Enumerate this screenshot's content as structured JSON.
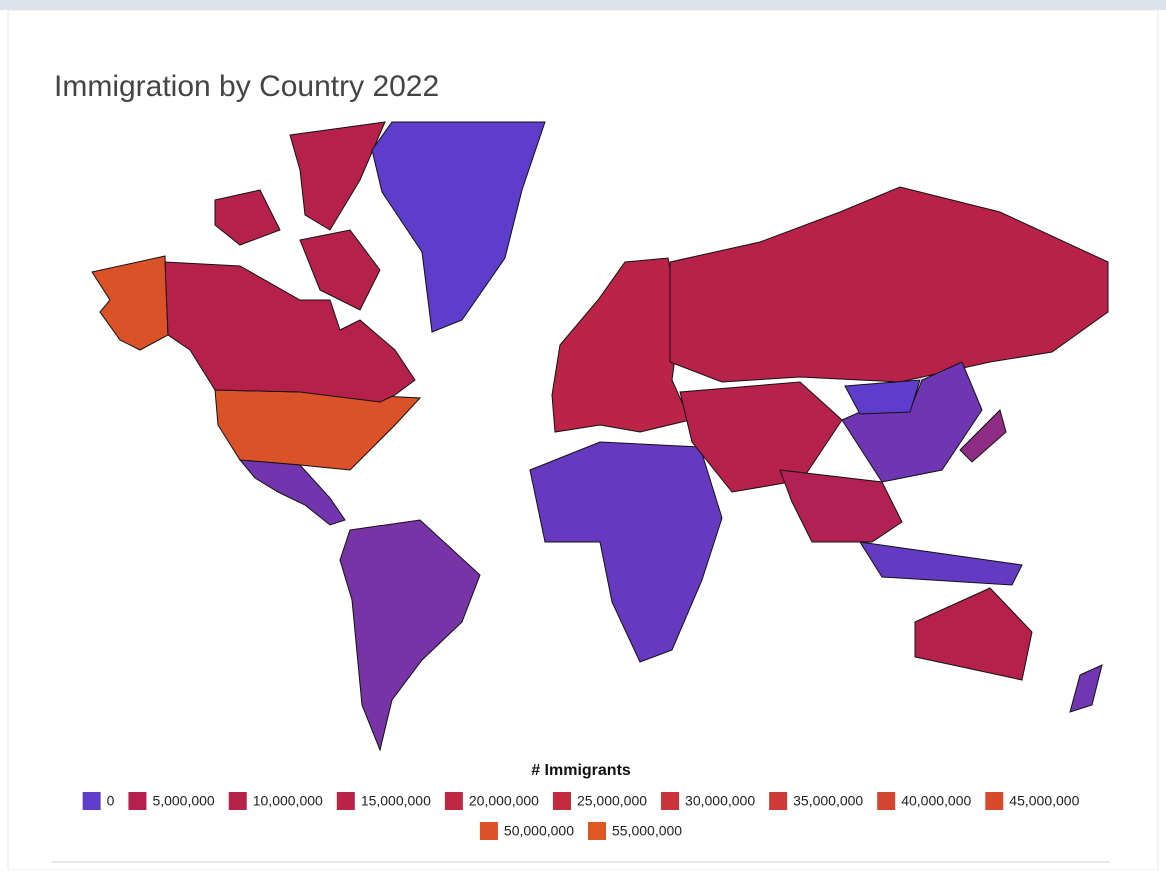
{
  "chart_data": {
    "type": "choropleth",
    "title": "Immigration by Country 2022",
    "values": [
      50600000,
      8000000,
      0,
      1200000,
      1500000,
      15000000,
      500000,
      11600000,
      9000000,
      1000000,
      0,
      4800000,
      350000,
      7700000,
      1100000,
      2800000
    ],
    "legend_title": "# Immigrants",
    "legend_ticks": [
      0,
      {
        "value": 5000000,
        "label": "5,000,000"
      },
      {
        "value": 10000000,
        "label": "10,000,000"
      },
      {
        "value": 15000000,
        "label": "15,000,000"
      },
      {
        "value": 20000000,
        "label": "20,000,000"
      },
      {
        "value": 25000000,
        "label": "25,000,000"
      },
      {
        "value": 30000000,
        "label": "30,000,000"
      },
      {
        "value": 35000000,
        "label": "35,000,000"
      },
      {
        "value": 40000000,
        "label": "40,000,000"
      },
      {
        "value": 45000000,
        "label": "45,000,000"
      },
      {
        "value": 50000000,
        "label": "50,000,000"
      },
      {
        "value": 55000000,
        "label": "55,000,000"
      }
    ],
    "legend_colors": [
      "#5e3ccc",
      "#b5204f",
      "#b7214a",
      "#bb2446",
      "#bf2742",
      "#c42b3e",
      "#c9333a",
      "#ce3a35",
      "#d34330",
      "#d84a2c",
      "#dc5128",
      "#e05826"
    ]
  }
}
